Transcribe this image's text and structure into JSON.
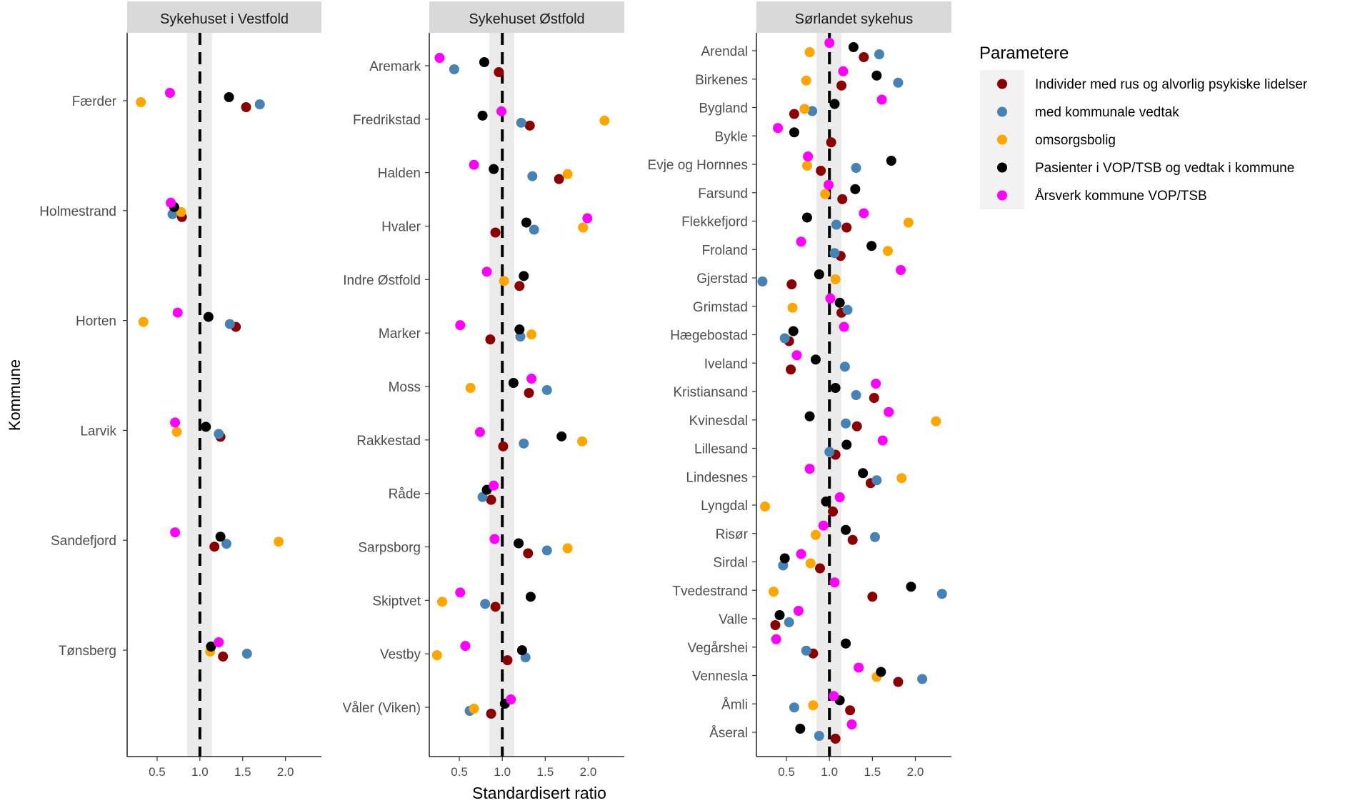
{
  "chart_data": {
    "type": "scatter",
    "y_label": "Kommune",
    "x_label": "Standardisert ratio",
    "x_ticks": [
      "0.5",
      "1.0",
      "1.5",
      "2.0"
    ],
    "xlim": [
      0.15,
      2.42
    ],
    "reference_line": 1.0,
    "reference_band": [
      0.85,
      1.14
    ],
    "legend_title": "Parametere",
    "series": [
      {
        "key": "rus",
        "name": "Individer med rus og alvorlig psykiske lidelser",
        "color": "#8B0000"
      },
      {
        "key": "vedtak",
        "name": "med kommunale vedtak",
        "color": "#4682B4"
      },
      {
        "key": "omsorg",
        "name": "omsorgsbolig",
        "color": "#FFA500"
      },
      {
        "key": "vop",
        "name": "Pasienter i VOP/TSB og vedtak i kommune",
        "color": "#000000"
      },
      {
        "key": "aarsverk",
        "name": "Årsverk kommune VOP/TSB",
        "color": "#FF00FF"
      }
    ],
    "panels": [
      {
        "title": "Sykehuset i Vestfold",
        "rows": [
          {
            "kommune": "Færder",
            "rus": 1.54,
            "vedtak": 1.7,
            "omsorg": 0.31,
            "vop": 1.34,
            "aarsverk": 0.65
          },
          {
            "kommune": "Holmestrand",
            "rus": 0.79,
            "vedtak": 0.68,
            "omsorg": 0.78,
            "vop": 0.7,
            "aarsverk": 0.66
          },
          {
            "kommune": "Horten",
            "rus": 1.42,
            "vedtak": 1.35,
            "omsorg": 0.34,
            "vop": 1.1,
            "aarsverk": 0.74
          },
          {
            "kommune": "Larvik",
            "rus": 1.24,
            "vedtak": 1.22,
            "omsorg": 0.73,
            "vop": 1.07,
            "aarsverk": 0.71
          },
          {
            "kommune": "Sandefjord",
            "rus": 1.17,
            "vedtak": 1.31,
            "omsorg": 1.92,
            "vop": 1.24,
            "aarsverk": 0.71
          },
          {
            "kommune": "Tønsberg",
            "rus": 1.27,
            "vedtak": 1.55,
            "omsorg": 1.12,
            "vop": 1.13,
            "aarsverk": 1.22
          }
        ]
      },
      {
        "title": "Sykehuset Østfold",
        "rows": [
          {
            "kommune": "Aremark",
            "rus": 0.96,
            "vedtak": 0.44,
            "omsorg": null,
            "vop": 0.79,
            "aarsverk": 0.27
          },
          {
            "kommune": "Fredrikstad",
            "rus": 1.32,
            "vedtak": 1.22,
            "omsorg": 2.19,
            "vop": 0.77,
            "aarsverk": 0.99
          },
          {
            "kommune": "Halden",
            "rus": 1.66,
            "vedtak": 1.35,
            "omsorg": 1.76,
            "vop": 0.9,
            "aarsverk": 0.67
          },
          {
            "kommune": "Hvaler",
            "rus": 0.92,
            "vedtak": 1.37,
            "omsorg": 1.94,
            "vop": 1.28,
            "aarsverk": 1.99
          },
          {
            "kommune": "Indre Østfold",
            "rus": 1.2,
            "vedtak": null,
            "omsorg": 1.02,
            "vop": 1.25,
            "aarsverk": 0.82
          },
          {
            "kommune": "Marker",
            "rus": 0.86,
            "vedtak": 1.21,
            "omsorg": 1.34,
            "vop": 1.2,
            "aarsverk": 0.51
          },
          {
            "kommune": "Moss",
            "rus": 1.31,
            "vedtak": 1.52,
            "omsorg": 0.63,
            "vop": 1.13,
            "aarsverk": 1.34
          },
          {
            "kommune": "Rakkestad",
            "rus": 1.01,
            "vedtak": 1.25,
            "omsorg": 1.93,
            "vop": 1.69,
            "aarsverk": 0.74
          },
          {
            "kommune": "Råde",
            "rus": 0.87,
            "vedtak": 0.77,
            "omsorg": null,
            "vop": 0.82,
            "aarsverk": 0.9
          },
          {
            "kommune": "Sarpsborg",
            "rus": 1.3,
            "vedtak": 1.52,
            "omsorg": 1.76,
            "vop": 1.19,
            "aarsverk": 0.91
          },
          {
            "kommune": "Skiptvet",
            "rus": 0.92,
            "vedtak": 0.8,
            "omsorg": 0.3,
            "vop": 1.33,
            "aarsverk": 0.51
          },
          {
            "kommune": "Vestby",
            "rus": 1.06,
            "vedtak": 1.27,
            "omsorg": 0.24,
            "vop": 1.23,
            "aarsverk": 0.57
          },
          {
            "kommune": "Våler (Viken)",
            "rus": 0.87,
            "vedtak": 0.62,
            "omsorg": 0.67,
            "vop": 1.03,
            "aarsverk": 1.1
          }
        ]
      },
      {
        "title": "Sørlandet sykehus",
        "rows": [
          {
            "kommune": "Arendal",
            "rus": 1.4,
            "vedtak": 1.58,
            "omsorg": 0.77,
            "vop": 1.28,
            "aarsverk": 1.0
          },
          {
            "kommune": "Birkenes",
            "rus": 1.14,
            "vedtak": 1.8,
            "omsorg": 0.73,
            "vop": 1.55,
            "aarsverk": 1.16
          },
          {
            "kommune": "Bygland",
            "rus": 0.59,
            "vedtak": 0.8,
            "omsorg": 0.71,
            "vop": 1.06,
            "aarsverk": 1.61
          },
          {
            "kommune": "Bykle",
            "rus": 1.02,
            "vedtak": null,
            "omsorg": null,
            "vop": 0.59,
            "aarsverk": 0.4
          },
          {
            "kommune": "Evje og Hornnes",
            "rus": 0.9,
            "vedtak": 1.31,
            "omsorg": 0.74,
            "vop": 1.72,
            "aarsverk": 0.75
          },
          {
            "kommune": "Farsund",
            "rus": 1.15,
            "vedtak": null,
            "omsorg": 0.95,
            "vop": 1.3,
            "aarsverk": 0.99
          },
          {
            "kommune": "Flekkefjord",
            "rus": 1.2,
            "vedtak": 1.08,
            "omsorg": 1.92,
            "vop": 0.74,
            "aarsverk": 1.4
          },
          {
            "kommune": "Froland",
            "rus": 1.13,
            "vedtak": 1.06,
            "omsorg": 1.68,
            "vop": 1.49,
            "aarsverk": 0.67
          },
          {
            "kommune": "Gjerstad",
            "rus": 0.56,
            "vedtak": 0.22,
            "omsorg": 1.07,
            "vop": 0.88,
            "aarsverk": 1.83
          },
          {
            "kommune": "Grimstad",
            "rus": 1.14,
            "vedtak": 1.21,
            "omsorg": 0.57,
            "vop": 1.12,
            "aarsverk": 1.01
          },
          {
            "kommune": "Hægebostad",
            "rus": 0.53,
            "vedtak": 0.48,
            "omsorg": null,
            "vop": 0.58,
            "aarsverk": 1.17
          },
          {
            "kommune": "Iveland",
            "rus": 0.55,
            "vedtak": 1.18,
            "omsorg": null,
            "vop": 0.84,
            "aarsverk": 0.62
          },
          {
            "kommune": "Kristiansand",
            "rus": 1.52,
            "vedtak": 1.31,
            "omsorg": null,
            "vop": 1.07,
            "aarsverk": 1.54
          },
          {
            "kommune": "Kvinesdal",
            "rus": 1.32,
            "vedtak": 1.19,
            "omsorg": 2.24,
            "vop": 0.77,
            "aarsverk": 1.69
          },
          {
            "kommune": "Lillesand",
            "rus": 1.07,
            "vedtak": 1.0,
            "omsorg": null,
            "vop": 1.2,
            "aarsverk": 1.62
          },
          {
            "kommune": "Lindesnes",
            "rus": 1.48,
            "vedtak": 1.55,
            "omsorg": 1.84,
            "vop": 1.39,
            "aarsverk": 0.77
          },
          {
            "kommune": "Lyngdal",
            "rus": 1.04,
            "vedtak": null,
            "omsorg": 0.25,
            "vop": 0.96,
            "aarsverk": 1.12
          },
          {
            "kommune": "Risør",
            "rus": 1.27,
            "vedtak": 1.53,
            "omsorg": 0.84,
            "vop": 1.19,
            "aarsverk": 0.93
          },
          {
            "kommune": "Sirdal",
            "rus": 0.89,
            "vedtak": 0.46,
            "omsorg": 0.78,
            "vop": 0.48,
            "aarsverk": 0.67
          },
          {
            "kommune": "Tvedestrand",
            "rus": 1.5,
            "vedtak": 2.31,
            "omsorg": 0.35,
            "vop": 1.95,
            "aarsverk": 1.06
          },
          {
            "kommune": "Valle",
            "rus": 0.37,
            "vedtak": 0.53,
            "omsorg": null,
            "vop": 0.42,
            "aarsverk": 0.64
          },
          {
            "kommune": "Vegårshei",
            "rus": 0.81,
            "vedtak": 0.73,
            "omsorg": null,
            "vop": 1.19,
            "aarsverk": 0.38
          },
          {
            "kommune": "Vennesla",
            "rus": 1.8,
            "vedtak": 2.08,
            "omsorg": 1.55,
            "vop": 1.6,
            "aarsverk": 1.34
          },
          {
            "kommune": "Åmli",
            "rus": 1.24,
            "vedtak": 0.59,
            "omsorg": 0.81,
            "vop": 1.12,
            "aarsverk": 1.05
          },
          {
            "kommune": "Åseral",
            "rus": 1.07,
            "vedtak": 0.88,
            "omsorg": null,
            "vop": 0.66,
            "aarsverk": 1.26
          }
        ]
      }
    ]
  }
}
